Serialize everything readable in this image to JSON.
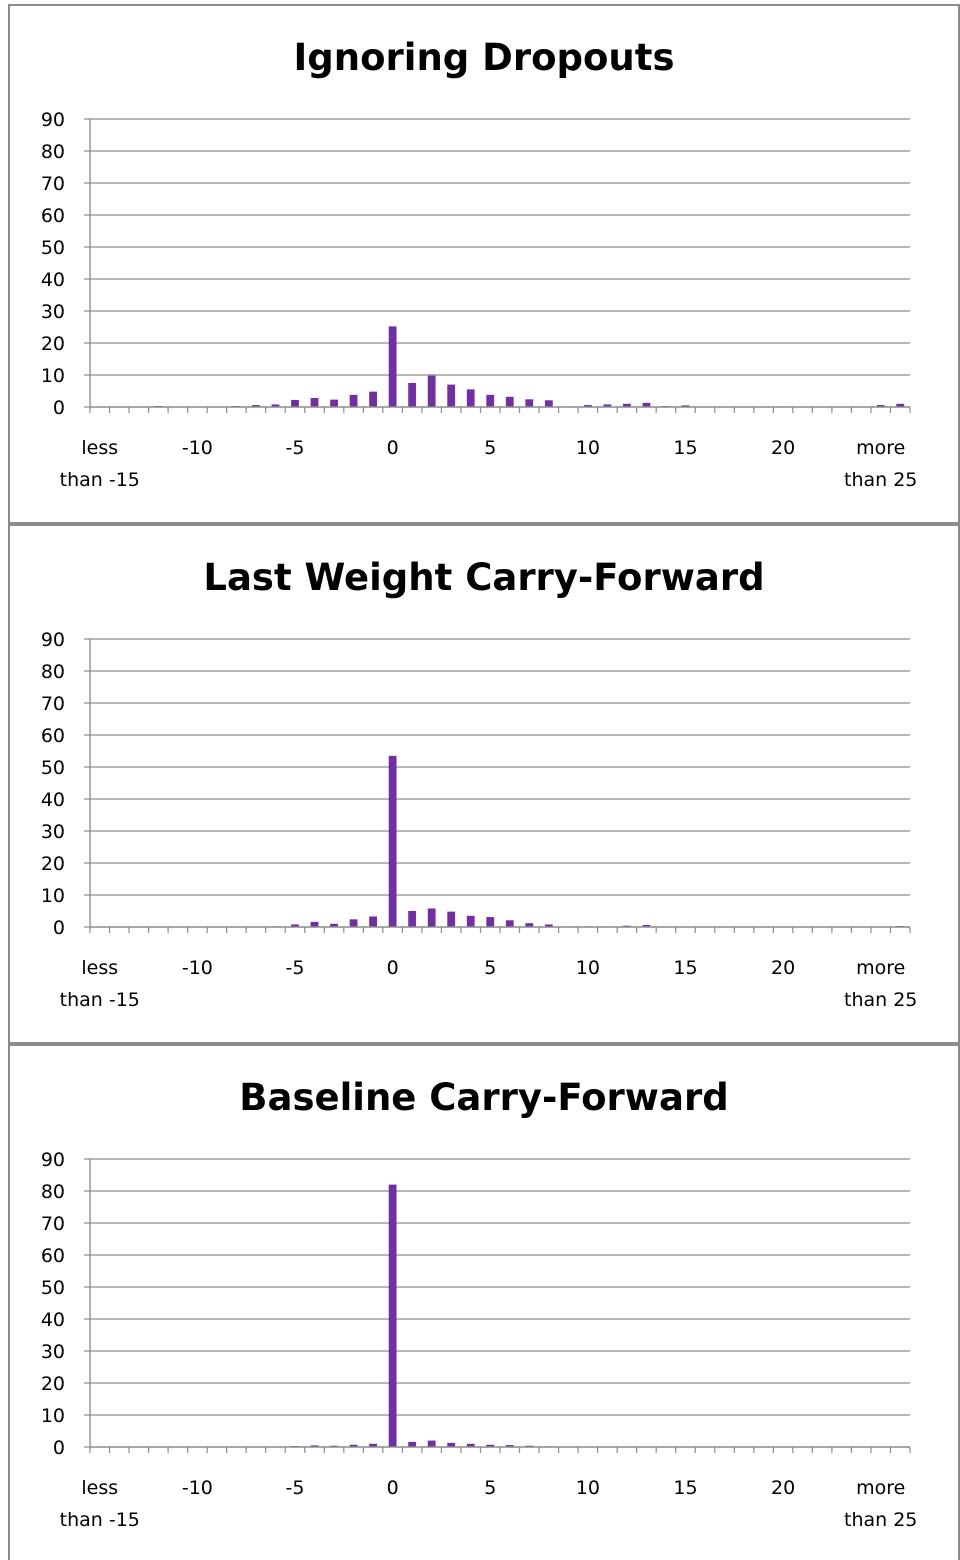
{
  "colors": {
    "bar": "#7030a0",
    "grid": "#8c8c8c",
    "axis": "#8c8c8c",
    "border": "#8c8c8c"
  },
  "chart_data": [
    {
      "type": "bar",
      "title": "Ignoring Dropouts",
      "ylim": [
        0,
        90
      ],
      "yticks": [
        0,
        10,
        20,
        30,
        40,
        50,
        60,
        70,
        80,
        90
      ],
      "grid": true,
      "x_tick_labels": [
        {
          "lines": [
            "less",
            "than -15"
          ]
        },
        {
          "lines": [
            "-10"
          ]
        },
        {
          "lines": [
            "-5"
          ]
        },
        {
          "lines": [
            "0"
          ]
        },
        {
          "lines": [
            "5"
          ]
        },
        {
          "lines": [
            "10"
          ]
        },
        {
          "lines": [
            "15"
          ]
        },
        {
          "lines": [
            "20"
          ]
        },
        {
          "lines": [
            "more",
            "than 25"
          ]
        }
      ],
      "categories": [
        "less than -15",
        "-14",
        "-13",
        "-12",
        "-11",
        "-10",
        "-9",
        "-8",
        "-7",
        "-6",
        "-5",
        "-4",
        "-3",
        "-2",
        "-1",
        "0",
        "1",
        "2",
        "3",
        "4",
        "5",
        "6",
        "7",
        "8",
        "9",
        "10",
        "11",
        "12",
        "13",
        "14",
        "15",
        "16",
        "17",
        "18",
        "19",
        "20",
        "21",
        "22",
        "23",
        "24",
        "25",
        "more than 25"
      ],
      "values": [
        0,
        0,
        0,
        0.3,
        0,
        0,
        0,
        0.3,
        0.6,
        0.8,
        2.2,
        2.8,
        2.3,
        3.8,
        4.8,
        25.2,
        7.5,
        9.8,
        7,
        5.5,
        3.8,
        3.2,
        2.4,
        2.1,
        0.2,
        0.6,
        0.8,
        1,
        1.3,
        0.3,
        0.5,
        0,
        0,
        0,
        0,
        0.2,
        0,
        0,
        0,
        0,
        0.6,
        1
      ]
    },
    {
      "type": "bar",
      "title": "Last Weight Carry-Forward",
      "ylim": [
        0,
        90
      ],
      "yticks": [
        0,
        10,
        20,
        30,
        40,
        50,
        60,
        70,
        80,
        90
      ],
      "grid": true,
      "x_tick_labels": [
        {
          "lines": [
            "less",
            "than -15"
          ]
        },
        {
          "lines": [
            "-10"
          ]
        },
        {
          "lines": [
            "-5"
          ]
        },
        {
          "lines": [
            "0"
          ]
        },
        {
          "lines": [
            "5"
          ]
        },
        {
          "lines": [
            "10"
          ]
        },
        {
          "lines": [
            "15"
          ]
        },
        {
          "lines": [
            "20"
          ]
        },
        {
          "lines": [
            "more",
            "than 25"
          ]
        }
      ],
      "categories": [
        "less than -15",
        "-14",
        "-13",
        "-12",
        "-11",
        "-10",
        "-9",
        "-8",
        "-7",
        "-6",
        "-5",
        "-4",
        "-3",
        "-2",
        "-1",
        "0",
        "1",
        "2",
        "3",
        "4",
        "5",
        "6",
        "7",
        "8",
        "9",
        "10",
        "11",
        "12",
        "13",
        "14",
        "15",
        "16",
        "17",
        "18",
        "19",
        "20",
        "21",
        "22",
        "23",
        "24",
        "25",
        "more than 25"
      ],
      "values": [
        0,
        0,
        0,
        0,
        0,
        0,
        0,
        0,
        0,
        0.2,
        0.8,
        1.6,
        1,
        2.4,
        3.3,
        53.5,
        5,
        5.8,
        4.8,
        3.5,
        3.1,
        2.1,
        1.2,
        0.8,
        0.2,
        0.2,
        0.2,
        0.4,
        0.6,
        0,
        0,
        0,
        0,
        0,
        0,
        0,
        0,
        0,
        0,
        0,
        0,
        0.3
      ]
    },
    {
      "type": "bar",
      "title": "Baseline Carry-Forward",
      "ylim": [
        0,
        90
      ],
      "yticks": [
        0,
        10,
        20,
        30,
        40,
        50,
        60,
        70,
        80,
        90
      ],
      "grid": true,
      "x_tick_labels": [
        {
          "lines": [
            "less",
            "than -15"
          ]
        },
        {
          "lines": [
            "-10"
          ]
        },
        {
          "lines": [
            "-5"
          ]
        },
        {
          "lines": [
            "0"
          ]
        },
        {
          "lines": [
            "5"
          ]
        },
        {
          "lines": [
            "10"
          ]
        },
        {
          "lines": [
            "15"
          ]
        },
        {
          "lines": [
            "20"
          ]
        },
        {
          "lines": [
            "more",
            "than 25"
          ]
        }
      ],
      "categories": [
        "less than -15",
        "-14",
        "-13",
        "-12",
        "-11",
        "-10",
        "-9",
        "-8",
        "-7",
        "-6",
        "-5",
        "-4",
        "-3",
        "-2",
        "-1",
        "0",
        "1",
        "2",
        "3",
        "4",
        "5",
        "6",
        "7",
        "8",
        "9",
        "10",
        "11",
        "12",
        "13",
        "14",
        "15",
        "16",
        "17",
        "18",
        "19",
        "20",
        "21",
        "22",
        "23",
        "24",
        "25",
        "more than 25"
      ],
      "values": [
        0,
        0,
        0,
        0,
        0,
        0,
        0,
        0,
        0,
        0,
        0.3,
        0.5,
        0.4,
        0.7,
        1,
        82,
        1.6,
        2,
        1.3,
        1,
        0.7,
        0.6,
        0.4,
        0.2,
        0,
        0,
        0,
        0,
        0,
        0,
        0,
        0,
        0,
        0,
        0,
        0,
        0,
        0,
        0,
        0,
        0,
        0
      ]
    }
  ]
}
